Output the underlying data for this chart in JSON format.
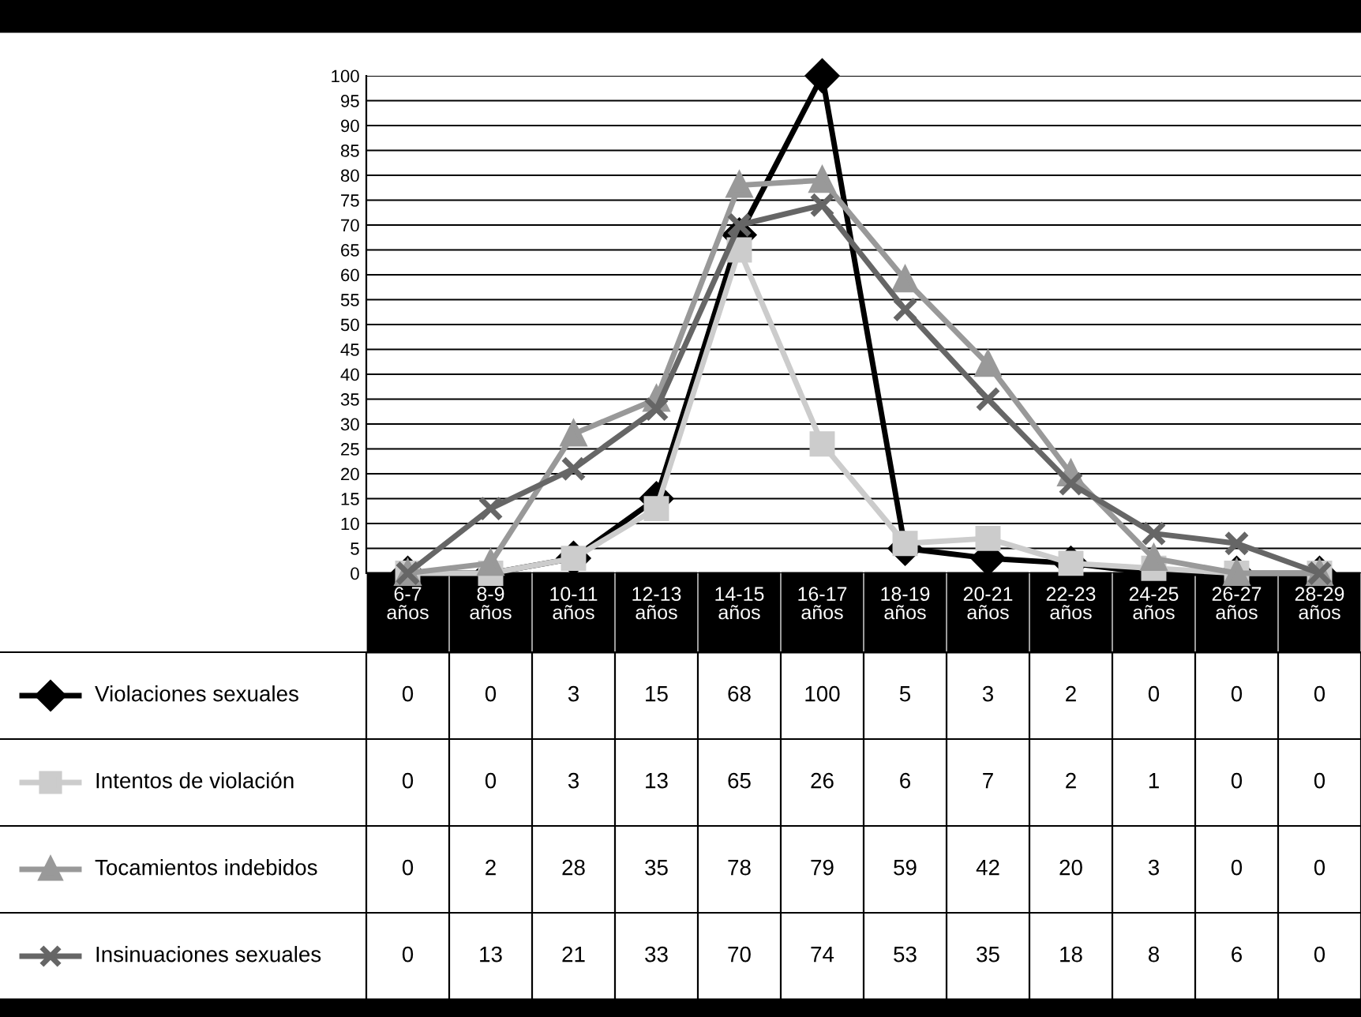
{
  "chart_data": {
    "type": "line",
    "categories": [
      "6-7\naños",
      "8-9\naños",
      "10-11\naños",
      "12-13\naños",
      "14-15\naños",
      "16-17\naños",
      "18-19\naños",
      "20-21\naños",
      "22-23\naños",
      "24-25\naños",
      "26-27\naños",
      "28-29\naños"
    ],
    "series": [
      {
        "name": "Violaciones sexuales",
        "color": "#000000",
        "marker": "diamond",
        "values": [
          0,
          0,
          3,
          15,
          68,
          100,
          5,
          3,
          2,
          0,
          0,
          0
        ]
      },
      {
        "name": "Intentos de violación",
        "color": "#cccccc",
        "marker": "square",
        "values": [
          0,
          0,
          3,
          13,
          65,
          26,
          6,
          7,
          2,
          1,
          0,
          0
        ]
      },
      {
        "name": "Tocamientos indebidos",
        "color": "#999999",
        "marker": "triangle",
        "values": [
          0,
          2,
          28,
          35,
          78,
          79,
          59,
          42,
          20,
          3,
          0,
          0
        ]
      },
      {
        "name": "Insinuaciones sexuales",
        "color": "#666666",
        "marker": "cross",
        "values": [
          0,
          13,
          21,
          33,
          70,
          74,
          53,
          35,
          18,
          8,
          6,
          0
        ]
      }
    ],
    "ylim": [
      0,
      100
    ],
    "yticks": [
      0,
      5,
      10,
      15,
      20,
      25,
      30,
      35,
      40,
      45,
      50,
      55,
      60,
      65,
      70,
      75,
      80,
      85,
      90,
      95,
      100
    ],
    "grid": "y",
    "legend": "bottom",
    "data_labels": true,
    "line_style": "solid"
  }
}
